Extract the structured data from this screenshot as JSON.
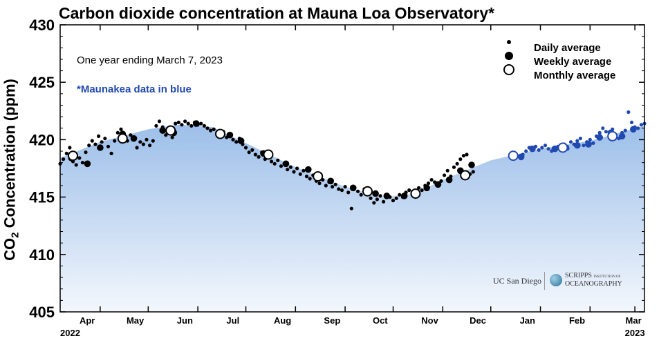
{
  "title": "Carbon dioxide concentration at Mauna Loa Observatory*",
  "subtitle": "One year ending March 7, 2023",
  "note": "*Maunakea data in blue",
  "ylabel_prefix": "CO",
  "ylabel_sub": "2",
  "ylabel_suffix": " Concentration (ppm)",
  "legend": {
    "daily": "Daily average",
    "weekly": "Weekly average",
    "monthly": "Monthly average"
  },
  "logos": {
    "ucsd": "UC San Diego",
    "scripps_line1": "SCRIPPS",
    "scripps_small": "INSTITUTION OF",
    "scripps_line2": "OCEANOGRAPHY"
  },
  "colors": {
    "mauna_loa": "#000000",
    "maunakea": "#2049b0",
    "fill_top": "#9dbfe9",
    "fill_bottom": "#f3f7fd"
  },
  "chart_data": {
    "type": "scatter",
    "xlabel": "",
    "ylabel": "CO2 Concentration (ppm)",
    "xlim": [
      "2022-03-07",
      "2023-03-07"
    ],
    "ylim": [
      405,
      430
    ],
    "yticks": [
      405,
      410,
      415,
      420,
      425,
      430
    ],
    "xticks": [
      {
        "date": "2022-04-01",
        "label": "Apr"
      },
      {
        "date": "2022-05-01",
        "label": "May"
      },
      {
        "date": "2022-06-01",
        "label": "Jun"
      },
      {
        "date": "2022-07-01",
        "label": "Jul"
      },
      {
        "date": "2022-08-01",
        "label": "Aug"
      },
      {
        "date": "2022-09-01",
        "label": "Sep"
      },
      {
        "date": "2022-10-01",
        "label": "Oct"
      },
      {
        "date": "2022-11-01",
        "label": "Nov"
      },
      {
        "date": "2022-12-01",
        "label": "Dec"
      },
      {
        "date": "2023-01-01",
        "label": "Jan"
      },
      {
        "date": "2023-02-01",
        "label": "Feb"
      },
      {
        "date": "2023-03-01",
        "label": "Mar"
      }
    ],
    "year_labels": [
      {
        "date": "2022-03-07",
        "label": "2022"
      },
      {
        "date": "2023-03-01",
        "label": "2023"
      }
    ],
    "grid": false,
    "legend_position": "top-right",
    "trend": [
      {
        "date": "2022-03-07",
        "value": 418.4
      },
      {
        "date": "2022-04-01",
        "value": 419.8
      },
      {
        "date": "2022-05-01",
        "value": 420.9
      },
      {
        "date": "2022-05-20",
        "value": 421.3
      },
      {
        "date": "2022-06-10",
        "value": 421.1
      },
      {
        "date": "2022-07-01",
        "value": 419.7
      },
      {
        "date": "2022-08-01",
        "value": 417.6
      },
      {
        "date": "2022-09-01",
        "value": 415.9
      },
      {
        "date": "2022-09-25",
        "value": 415.0
      },
      {
        "date": "2022-10-15",
        "value": 415.3
      },
      {
        "date": "2022-11-01",
        "value": 416.5
      },
      {
        "date": "2022-12-01",
        "value": 418.2
      },
      {
        "date": "2023-01-01",
        "value": 419.2
      },
      {
        "date": "2023-02-01",
        "value": 419.9
      },
      {
        "date": "2023-03-07",
        "value": 421.2
      }
    ],
    "series": [
      {
        "name": "Daily average",
        "station": "Mauna Loa",
        "marker": "small-dot",
        "points": [
          [
            "2022-03-07",
            417.9
          ],
          [
            "2022-03-09",
            418.3
          ],
          [
            "2022-03-11",
            418.8
          ],
          [
            "2022-03-13",
            419.3
          ],
          [
            "2022-03-15",
            418.1
          ],
          [
            "2022-03-17",
            417.8
          ],
          [
            "2022-03-19",
            418.4
          ],
          [
            "2022-03-21",
            418.0
          ],
          [
            "2022-03-23",
            418.9
          ],
          [
            "2022-03-25",
            419.5
          ],
          [
            "2022-03-27",
            419.9
          ],
          [
            "2022-03-29",
            419.6
          ],
          [
            "2022-03-31",
            420.3
          ],
          [
            "2022-04-02",
            419.8
          ],
          [
            "2022-04-04",
            420.1
          ],
          [
            "2022-04-06",
            419.4
          ],
          [
            "2022-04-08",
            418.8
          ],
          [
            "2022-04-10",
            419.9
          ],
          [
            "2022-04-12",
            420.6
          ],
          [
            "2022-04-14",
            420.9
          ],
          [
            "2022-04-16",
            420.2
          ],
          [
            "2022-04-18",
            419.9
          ],
          [
            "2022-04-20",
            420.4
          ],
          [
            "2022-04-22",
            420.1
          ],
          [
            "2022-04-24",
            419.3
          ],
          [
            "2022-04-26",
            419.8
          ],
          [
            "2022-04-28",
            419.6
          ],
          [
            "2022-04-30",
            420.0
          ],
          [
            "2022-05-02",
            419.5
          ],
          [
            "2022-05-04",
            419.9
          ],
          [
            "2022-05-06",
            421.2
          ],
          [
            "2022-05-08",
            421.6
          ],
          [
            "2022-05-10",
            421.1
          ],
          [
            "2022-05-12",
            420.4
          ],
          [
            "2022-05-14",
            420.7
          ],
          [
            "2022-05-16",
            420.2
          ],
          [
            "2022-05-18",
            421.4
          ],
          [
            "2022-05-20",
            421.5
          ],
          [
            "2022-05-22",
            421.3
          ],
          [
            "2022-05-24",
            421.6
          ],
          [
            "2022-05-26",
            421.4
          ],
          [
            "2022-05-28",
            421.2
          ],
          [
            "2022-05-30",
            421.5
          ],
          [
            "2022-06-01",
            421.3
          ],
          [
            "2022-06-03",
            421.4
          ],
          [
            "2022-06-05",
            421.2
          ],
          [
            "2022-06-07",
            421.0
          ],
          [
            "2022-06-09",
            420.8
          ],
          [
            "2022-06-11",
            420.9
          ],
          [
            "2022-06-13",
            420.6
          ],
          [
            "2022-06-15",
            420.3
          ],
          [
            "2022-06-17",
            420.7
          ],
          [
            "2022-06-19",
            420.2
          ],
          [
            "2022-06-21",
            420.4
          ],
          [
            "2022-06-23",
            420.0
          ],
          [
            "2022-06-25",
            419.8
          ],
          [
            "2022-06-27",
            420.1
          ],
          [
            "2022-06-29",
            419.6
          ],
          [
            "2022-07-01",
            419.3
          ],
          [
            "2022-07-03",
            418.9
          ],
          [
            "2022-07-05",
            419.1
          ],
          [
            "2022-07-07",
            418.7
          ],
          [
            "2022-07-09",
            418.5
          ],
          [
            "2022-07-11",
            418.9
          ],
          [
            "2022-07-13",
            418.3
          ],
          [
            "2022-07-15",
            418.6
          ],
          [
            "2022-07-17",
            418.1
          ],
          [
            "2022-07-19",
            417.9
          ],
          [
            "2022-07-21",
            418.2
          ],
          [
            "2022-07-23",
            417.7
          ],
          [
            "2022-07-25",
            417.9
          ],
          [
            "2022-07-27",
            417.4
          ],
          [
            "2022-07-29",
            417.6
          ],
          [
            "2022-07-31",
            417.2
          ],
          [
            "2022-08-02",
            417.5
          ],
          [
            "2022-08-04",
            417.0
          ],
          [
            "2022-08-06",
            417.3
          ],
          [
            "2022-08-08",
            416.8
          ],
          [
            "2022-08-10",
            416.6
          ],
          [
            "2022-08-12",
            416.9
          ],
          [
            "2022-08-14",
            416.4
          ],
          [
            "2022-08-16",
            416.2
          ],
          [
            "2022-08-18",
            416.5
          ],
          [
            "2022-08-20",
            416.0
          ],
          [
            "2022-08-22",
            416.3
          ],
          [
            "2022-08-24",
            415.9
          ],
          [
            "2022-08-26",
            416.1
          ],
          [
            "2022-08-28",
            415.7
          ],
          [
            "2022-08-30",
            415.6
          ],
          [
            "2022-09-01",
            415.9
          ],
          [
            "2022-09-03",
            415.4
          ],
          [
            "2022-09-05",
            414.0
          ],
          [
            "2022-09-07",
            415.8
          ],
          [
            "2022-09-09",
            415.5
          ],
          [
            "2022-09-11",
            415.2
          ],
          [
            "2022-09-13",
            415.7
          ],
          [
            "2022-09-15",
            415.3
          ],
          [
            "2022-09-17",
            414.9
          ],
          [
            "2022-09-19",
            414.5
          ],
          [
            "2022-09-21",
            414.8
          ],
          [
            "2022-09-23",
            415.1
          ],
          [
            "2022-09-25",
            414.6
          ],
          [
            "2022-09-27",
            415.2
          ],
          [
            "2022-09-29",
            415.0
          ],
          [
            "2022-10-01",
            414.7
          ],
          [
            "2022-10-03",
            414.9
          ],
          [
            "2022-10-05",
            415.2
          ],
          [
            "2022-10-07",
            415.0
          ],
          [
            "2022-10-09",
            415.4
          ],
          [
            "2022-10-11",
            415.6
          ],
          [
            "2022-10-13",
            415.3
          ],
          [
            "2022-10-15",
            415.5
          ],
          [
            "2022-10-17",
            415.8
          ],
          [
            "2022-10-19",
            415.6
          ],
          [
            "2022-10-21",
            416.0
          ],
          [
            "2022-10-23",
            416.2
          ],
          [
            "2022-10-25",
            416.5
          ],
          [
            "2022-10-27",
            416.3
          ],
          [
            "2022-10-29",
            416.1
          ],
          [
            "2022-10-31",
            416.4
          ],
          [
            "2022-11-02",
            416.9
          ],
          [
            "2022-11-04",
            417.3
          ],
          [
            "2022-11-06",
            416.8
          ],
          [
            "2022-11-08",
            417.6
          ],
          [
            "2022-11-10",
            417.9
          ],
          [
            "2022-11-12",
            418.3
          ],
          [
            "2022-11-14",
            418.6
          ],
          [
            "2022-11-16",
            418.7
          ],
          [
            "2022-11-18",
            417.0
          ],
          [
            "2022-11-20",
            417.2
          ]
        ]
      },
      {
        "name": "Weekly average",
        "station": "Mauna Loa",
        "marker": "filled-circle",
        "points": [
          [
            "2022-03-14",
            418.4
          ],
          [
            "2022-03-24",
            417.9
          ],
          [
            "2022-04-01",
            419.3
          ],
          [
            "2022-04-15",
            420.5
          ],
          [
            "2022-04-22",
            420.1
          ],
          [
            "2022-05-10",
            420.8
          ],
          [
            "2022-05-17",
            420.6
          ],
          [
            "2022-05-31",
            421.4
          ],
          [
            "2022-06-14",
            420.6
          ],
          [
            "2022-06-21",
            420.4
          ],
          [
            "2022-06-28",
            419.9
          ],
          [
            "2022-07-12",
            418.8
          ],
          [
            "2022-07-26",
            417.9
          ],
          [
            "2022-08-09",
            417.4
          ],
          [
            "2022-08-16",
            416.8
          ],
          [
            "2022-08-23",
            416.4
          ],
          [
            "2022-09-06",
            415.8
          ],
          [
            "2022-09-20",
            415.3
          ],
          [
            "2022-09-27",
            415.1
          ],
          [
            "2022-10-08",
            415.1
          ],
          [
            "2022-10-15",
            415.3
          ],
          [
            "2022-10-22",
            415.8
          ],
          [
            "2022-10-29",
            416.1
          ],
          [
            "2022-11-05",
            416.5
          ],
          [
            "2022-11-12",
            417.3
          ],
          [
            "2022-11-19",
            417.8
          ]
        ]
      },
      {
        "name": "Monthly average",
        "station": "Mauna Loa",
        "marker": "open-circle",
        "points": [
          [
            "2022-03-15",
            418.6
          ],
          [
            "2022-04-15",
            420.1
          ],
          [
            "2022-05-15",
            420.8
          ],
          [
            "2022-06-15",
            420.5
          ],
          [
            "2022-07-15",
            418.7
          ],
          [
            "2022-08-15",
            416.8
          ],
          [
            "2022-09-15",
            415.5
          ],
          [
            "2022-10-15",
            415.3
          ],
          [
            "2022-11-15",
            416.9
          ]
        ]
      },
      {
        "name": "Daily average",
        "station": "Maunakea",
        "marker": "small-dot",
        "points": [
          [
            "2022-12-21",
            418.7
          ],
          [
            "2022-12-23",
            419.0
          ],
          [
            "2022-12-25",
            419.3
          ],
          [
            "2022-12-27",
            419.2
          ],
          [
            "2022-12-29",
            419.4
          ],
          [
            "2022-12-31",
            419.1
          ],
          [
            "2023-01-02",
            419.3
          ],
          [
            "2023-01-04",
            419.5
          ],
          [
            "2023-01-06",
            419.2
          ],
          [
            "2023-01-08",
            419.0
          ],
          [
            "2023-01-10",
            419.3
          ],
          [
            "2023-01-12",
            419.4
          ],
          [
            "2023-01-14",
            419.1
          ],
          [
            "2023-01-16",
            419.6
          ],
          [
            "2023-01-18",
            419.2
          ],
          [
            "2023-01-20",
            419.8
          ],
          [
            "2023-01-22",
            419.6
          ],
          [
            "2023-01-24",
            419.9
          ],
          [
            "2023-01-26",
            420.1
          ],
          [
            "2023-01-28",
            419.5
          ],
          [
            "2023-01-30",
            419.8
          ],
          [
            "2023-02-01",
            420.0
          ],
          [
            "2023-02-03",
            419.7
          ],
          [
            "2023-02-05",
            420.3
          ],
          [
            "2023-02-07",
            420.6
          ],
          [
            "2023-02-09",
            421.0
          ],
          [
            "2023-02-11",
            420.7
          ],
          [
            "2023-02-13",
            420.4
          ],
          [
            "2023-02-15",
            420.9
          ],
          [
            "2023-02-17",
            420.3
          ],
          [
            "2023-02-19",
            420.1
          ],
          [
            "2023-02-21",
            420.6
          ],
          [
            "2023-02-23",
            420.8
          ],
          [
            "2023-02-25",
            422.4
          ],
          [
            "2023-02-27",
            421.5
          ],
          [
            "2023-03-01",
            421.1
          ],
          [
            "2023-03-03",
            421.0
          ],
          [
            "2023-03-05",
            421.3
          ],
          [
            "2023-03-07",
            421.4
          ]
        ]
      },
      {
        "name": "Weekly average",
        "station": "Maunakea",
        "marker": "filled-circle",
        "points": [
          [
            "2022-12-20",
            418.5
          ],
          [
            "2022-12-27",
            419.2
          ],
          [
            "2023-01-10",
            419.2
          ],
          [
            "2023-01-17",
            419.3
          ],
          [
            "2023-01-24",
            419.5
          ],
          [
            "2023-01-31",
            419.6
          ],
          [
            "2023-02-07",
            420.2
          ],
          [
            "2023-02-14",
            420.6
          ],
          [
            "2023-02-21",
            420.3
          ],
          [
            "2023-02-28",
            420.9
          ]
        ]
      },
      {
        "name": "Monthly average",
        "station": "Maunakea",
        "marker": "open-circle",
        "points": [
          [
            "2022-12-15",
            418.6
          ],
          [
            "2023-01-15",
            419.3
          ],
          [
            "2023-02-15",
            420.3
          ]
        ]
      }
    ]
  }
}
